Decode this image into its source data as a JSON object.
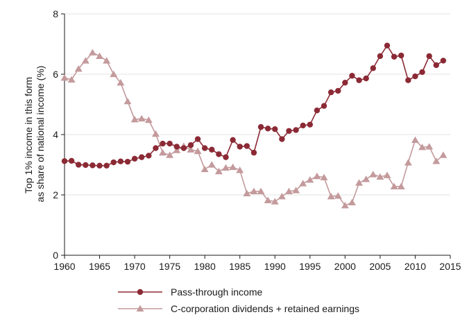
{
  "chart_data": {
    "type": "line",
    "title": "",
    "xlabel": "",
    "ylabel_lines": [
      "Top 1% income in this form",
      "as share of national income (%)"
    ],
    "xlim": [
      1960,
      2015
    ],
    "ylim": [
      0,
      8
    ],
    "x_ticks": [
      1960,
      1965,
      1970,
      1975,
      1980,
      1985,
      1990,
      1995,
      2000,
      2005,
      2010,
      2015
    ],
    "y_ticks": [
      0,
      2,
      4,
      6,
      8
    ],
    "grid": "horizontal",
    "legend_position": "bottom",
    "x": [
      1960,
      1961,
      1962,
      1963,
      1964,
      1965,
      1966,
      1967,
      1968,
      1969,
      1970,
      1971,
      1972,
      1973,
      1974,
      1975,
      1976,
      1977,
      1978,
      1979,
      1980,
      1981,
      1982,
      1983,
      1984,
      1985,
      1986,
      1987,
      1988,
      1989,
      1990,
      1991,
      1992,
      1993,
      1994,
      1995,
      1996,
      1997,
      1998,
      1999,
      2000,
      2001,
      2002,
      2003,
      2004,
      2005,
      2006,
      2007,
      2008,
      2009,
      2010,
      2011,
      2012,
      2013,
      2014
    ],
    "series": [
      {
        "name": "Pass-through income",
        "color": "#8b2a35",
        "marker": "circle",
        "values": [
          3.12,
          3.13,
          3.0,
          2.99,
          2.98,
          2.97,
          2.97,
          3.08,
          3.11,
          3.1,
          3.2,
          3.25,
          3.3,
          3.55,
          3.7,
          3.7,
          3.6,
          3.55,
          3.65,
          3.85,
          3.55,
          3.5,
          3.35,
          3.25,
          3.82,
          3.6,
          3.62,
          3.4,
          4.25,
          4.2,
          4.18,
          3.85,
          4.12,
          4.15,
          4.3,
          4.33,
          4.8,
          4.95,
          5.4,
          5.45,
          5.72,
          5.95,
          5.8,
          5.86,
          6.2,
          6.6,
          6.95,
          6.58,
          6.62,
          5.8,
          5.93,
          6.07,
          6.6,
          6.3,
          6.45
        ]
      },
      {
        "name": "C-corporation dividends + retained earnings",
        "color": "#c49a9c",
        "marker": "triangle",
        "values": [
          5.88,
          5.82,
          6.18,
          6.45,
          6.72,
          6.6,
          6.45,
          6.0,
          5.72,
          5.1,
          4.5,
          4.53,
          4.48,
          4.02,
          3.4,
          3.32,
          3.48,
          3.62,
          3.5,
          3.45,
          2.85,
          3.0,
          2.78,
          2.9,
          2.92,
          2.82,
          2.05,
          2.12,
          2.12,
          1.82,
          1.78,
          1.95,
          2.12,
          2.15,
          2.38,
          2.5,
          2.62,
          2.58,
          1.95,
          1.97,
          1.65,
          1.75,
          2.4,
          2.52,
          2.68,
          2.6,
          2.65,
          2.28,
          2.28,
          3.07,
          3.82,
          3.58,
          3.6,
          3.12,
          3.32
        ]
      }
    ]
  }
}
